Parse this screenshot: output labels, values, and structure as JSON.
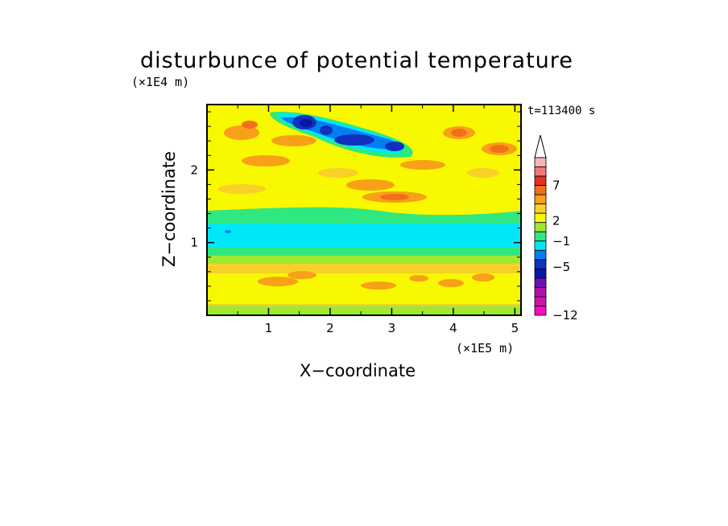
{
  "chart_data": {
    "type": "heatmap",
    "title": "disturbunce of potential temperature",
    "xlabel": "X−coordinate",
    "ylabel": "Z−coordinate",
    "x_scale_label": "(×1E5 m)",
    "y_scale_label": "(×1E4 m)",
    "annotation": "t=113400 s",
    "xlim": [
      0,
      5.1
    ],
    "ylim": [
      0,
      2.9
    ],
    "x_ticks": [
      "1",
      "2",
      "3",
      "4",
      "5"
    ],
    "x_tick_values": [
      1,
      2,
      3,
      4,
      5
    ],
    "y_ticks": [
      "1",
      "2"
    ],
    "y_tick_values": [
      1,
      2
    ],
    "colorbar": {
      "labels": [
        "7",
        "2",
        "−1",
        "−5",
        "−12"
      ],
      "colors": [
        "#f8b4b4",
        "#f07878",
        "#e83020",
        "#f07018",
        "#f8a018",
        "#f8d028",
        "#f8f800",
        "#a0e830",
        "#30e880",
        "#00e8f8",
        "#0080f0",
        "#1030c0",
        "#0818a0",
        "#7010b0",
        "#b010b0",
        "#d010a8",
        "#f010c0"
      ]
    },
    "colors": {
      "background": "#00e8f8",
      "yellow": "#f8f800",
      "pale_yellow": "#f8d028",
      "orange": "#f8a018",
      "dark_orange": "#f07018",
      "green": "#30e880",
      "light_green": "#a0e830",
      "blue": "#0080f0",
      "navy": "#1030c0",
      "dark_navy": "#0818a0"
    }
  }
}
